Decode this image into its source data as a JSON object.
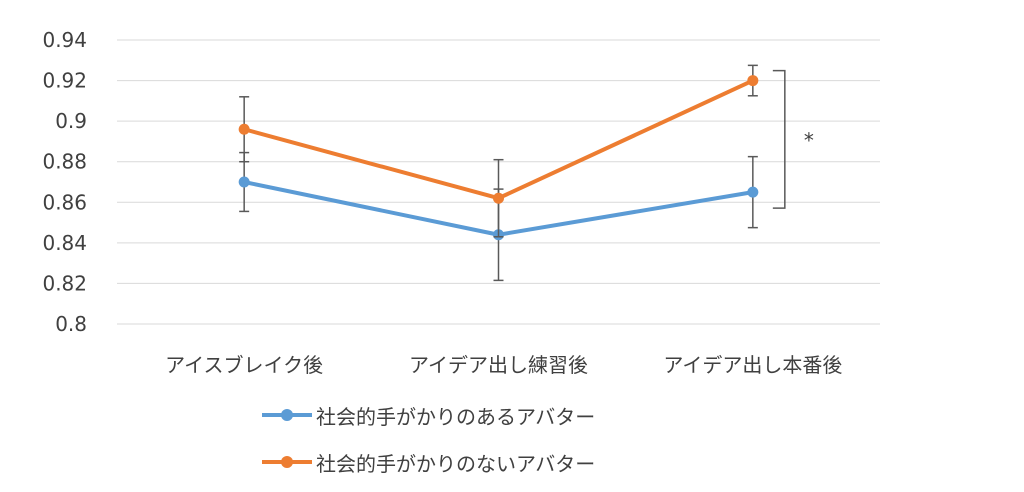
{
  "chart_data": {
    "type": "line",
    "categories": [
      "アイスブレイク後",
      "アイデア出し練習後",
      "アイデア出し本番後"
    ],
    "ylim": [
      0.8,
      0.94
    ],
    "yticks": [
      "0.8",
      "0.82",
      "0.84",
      "0.86",
      "0.88",
      "0.9",
      "0.92",
      "0.94"
    ],
    "grid": true,
    "legend_position": "bottom",
    "series": [
      {
        "name": "社会的手がかりのあるアバター",
        "color": "#5b9bd5",
        "values": [
          0.87,
          0.844,
          0.865
        ],
        "error": [
          0.0145,
          0.0225,
          0.0175
        ]
      },
      {
        "name": "社会的手がかりのないアバター",
        "color": "#ed7d31",
        "values": [
          0.896,
          0.862,
          0.92
        ],
        "error": [
          0.016,
          0.019,
          0.0075
        ]
      }
    ],
    "annotation": "*"
  }
}
